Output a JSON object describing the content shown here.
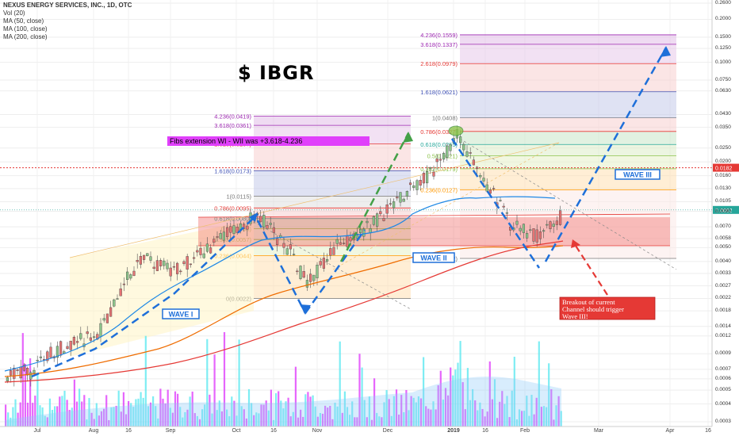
{
  "title": "NEXUS ENERGY SERVICES, INC., 1D, OTC",
  "indicators": [
    "Vol (20)",
    "MA (50, close)",
    "MA (100, close)",
    "MA (200, close)"
  ],
  "ticker_text": "$ IBGR",
  "price_axis_labels": [
    "0.2600",
    "0.2000",
    "0.1500",
    "0.1250",
    "0.1000",
    "0.0750",
    "0.0630",
    "0.0430",
    "0.0350",
    "0.0250",
    "0.0200",
    "0.0160",
    "0.0130",
    "0.0105",
    "0.0090",
    "0.0070",
    "0.0058",
    "0.0050",
    "0.0040",
    "0.0033",
    "0.0027",
    "0.0022",
    "0.0018",
    "0.0014",
    "0.0012",
    "0.0009",
    "0.0007",
    "0.0006",
    "0.0005",
    "0.0004",
    "0.0003"
  ],
  "current_price_tag": "0.0092",
  "red_line_tag": "0.0182",
  "x_axis_labels": [
    {
      "text": "Jul",
      "bold": false
    },
    {
      "text": "Aug",
      "bold": false
    },
    {
      "text": "16",
      "bold": false
    },
    {
      "text": "Sep",
      "bold": false
    },
    {
      "text": "Oct",
      "bold": false
    },
    {
      "text": "16",
      "bold": false
    },
    {
      "text": "Nov",
      "bold": false
    },
    {
      "text": "Dec",
      "bold": false
    },
    {
      "text": "2019",
      "bold": true
    },
    {
      "text": "16",
      "bold": false
    },
    {
      "text": "Feb",
      "bold": false
    },
    {
      "text": "Mar",
      "bold": false
    },
    {
      "text": "Apr",
      "bold": false
    },
    {
      "text": "16",
      "bold": false
    }
  ],
  "fib_set_1": [
    {
      "ratio": "4.236(0.0419)",
      "color": "#9c27b0"
    },
    {
      "ratio": "3.618(0.0361)",
      "color": "#9c27b0"
    },
    {
      "ratio": "2.618(0.0267)",
      "color": "#e53935"
    },
    {
      "ratio": "1.618(0.0173)",
      "color": "#3f51b5"
    },
    {
      "ratio": "1(0.0115)",
      "color": "#777777"
    },
    {
      "ratio": "0.786(0.0095)",
      "color": "#e53935"
    },
    {
      "ratio": "0.618(0.0080)",
      "color": "#26a69a"
    },
    {
      "ratio": "0.5(0.0068)",
      "color": "#8bc34a"
    },
    {
      "ratio": "0.382(0.0057)",
      "color": "#8bc34a"
    },
    {
      "ratio": "0.236(0.0044)",
      "color": "#ff9800"
    },
    {
      "ratio": "0(0.0022)",
      "color": "#777777"
    }
  ],
  "fib_set_2": [
    {
      "ratio": "1(0.0408)",
      "color": "#777777"
    },
    {
      "ratio": "0.786(0.0327)",
      "color": "#e53935"
    },
    {
      "ratio": "0.618(0.0265)",
      "color": "#26a69a"
    },
    {
      "ratio": "0.5(0.0221)",
      "color": "#8bc34a"
    },
    {
      "ratio": "0.382(0.0179)",
      "color": "#8bc34a"
    },
    {
      "ratio": "0.236(0.0127)",
      "color": "#ff9800"
    },
    {
      "ratio": "0(0.0042)",
      "color": "#777777"
    }
  ],
  "fib_set_3": [
    {
      "ratio": "4.236(0.1559)",
      "color": "#9c27b0"
    },
    {
      "ratio": "3.618(0.1337)",
      "color": "#9c27b0"
    },
    {
      "ratio": "2.618(0.0979)",
      "color": "#e53935"
    },
    {
      "ratio": "1.618(0.0621)",
      "color": "#3f51b5"
    }
  ],
  "annotations": {
    "fibs_extension": "Fibs extension WI - WII was +3.618-4.236",
    "wave1": "WAVE I",
    "wave2": "WAVE II",
    "wave3": "WAVE III",
    "breakout": "Breakout of current Channel should trigger Wave III!"
  },
  "colors": {
    "up_candle": "#8bc48a",
    "down_candle": "#e57373",
    "volume_up": "#5ee8f0",
    "volume_down": "#e040fb",
    "ma50": "#1e88e5",
    "ma100": "#ef6c00",
    "ma200": "#e53935",
    "red_line": "#e53935",
    "wave_arrow": "#1e6fd9",
    "wave_arrow_2": "#43a047",
    "wave_label_bg": "#1e6fd9"
  },
  "chart_data": {
    "type": "candlestick",
    "symbol": "IBGR",
    "series": [
      {
        "name": "MA (50, close)"
      },
      {
        "name": "MA (100, close)"
      },
      {
        "name": "MA (200, close)"
      }
    ],
    "x": [
      "Jul",
      "Aug",
      "16",
      "Sep",
      "Oct",
      "16",
      "Nov",
      "Dec",
      "2019",
      "16",
      "Feb",
      "Mar",
      "Apr",
      "16"
    ],
    "price_scale": "log",
    "ylim": [
      0.0003,
      0.26
    ],
    "last_price": 0.0092,
    "resistance_line": 0.0182
  }
}
